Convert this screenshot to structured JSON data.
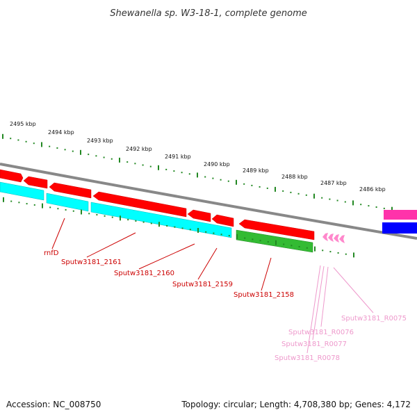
{
  "title": "Shewanella sp. W3-18-1, complete genome",
  "accession": "Accession: NC_008750",
  "summary": "Topology: circular; Length: 4,708,380 bp; Genes: 4,172",
  "scale_labels": [
    "2495 kbp",
    "2494 kbp",
    "2493 kbp",
    "2492 kbp",
    "2491 kbp",
    "2490 kbp",
    "2489 kbp",
    "2488 kbp",
    "2487 kbp",
    "2486 kbp"
  ],
  "gene_labels": [
    "rnfD",
    "Sputw3181_2161",
    "Sputw3181_2160",
    "Sputw3181_2159",
    "Sputw3181_2158"
  ],
  "rna_labels": [
    "Sputw3181_R0075",
    "Sputw3181_R0076",
    "Sputw3181_R0077",
    "Sputw3181_R0078"
  ],
  "colors": {
    "gene_strand": "#ff0000",
    "cds_outer": "#00ffff",
    "cds_green": "#33bb33",
    "rna": "#ff88cc",
    "backbone": "#888888",
    "scale_ticks": "#228822",
    "label_red": "#cc0000",
    "label_pink": "#ee99cc",
    "blue_feature": "#0000ff",
    "magenta_feature": "#ff33aa"
  }
}
